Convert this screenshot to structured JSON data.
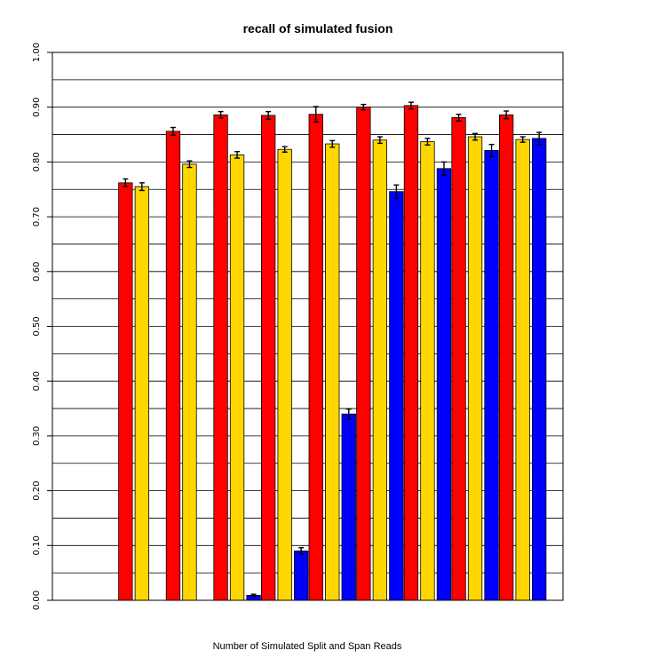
{
  "chart_data": {
    "type": "bar",
    "title": "recall of simulated fusion",
    "xlabel": "Number of Simulated Split and Span Reads",
    "ylabel": "",
    "ylim": [
      0,
      1.0
    ],
    "yticks": [
      "0.00",
      "0.10",
      "0.20",
      "0.30",
      "0.40",
      "0.50",
      "0.60",
      "0.70",
      "0.80",
      "0.90",
      "1.00"
    ],
    "gridlines": [
      0.05,
      0.1,
      0.15,
      0.2,
      0.25,
      0.3,
      0.35,
      0.4,
      0.45,
      0.5,
      0.55,
      0.6,
      0.65,
      0.7,
      0.75,
      0.8,
      0.85,
      0.9,
      0.95
    ],
    "group_count": 11,
    "series": [
      {
        "color": "#ff0000",
        "values": [
          0.0,
          0.762,
          0.856,
          0.886,
          0.885,
          0.887,
          0.9,
          0.903,
          0.881,
          0.886,
          null
        ],
        "errors": [
          0.0,
          0.007,
          0.007,
          0.006,
          0.007,
          0.014,
          0.005,
          0.006,
          0.006,
          0.007,
          null
        ]
      },
      {
        "color": "#ffd700",
        "values": [
          0.0,
          0.755,
          0.796,
          0.813,
          0.823,
          0.833,
          0.84,
          0.837,
          0.846,
          0.841,
          null
        ],
        "errors": [
          0.0,
          0.007,
          0.006,
          0.006,
          0.005,
          0.006,
          0.006,
          0.006,
          0.006,
          0.005,
          null
        ]
      },
      {
        "color": "#0000ff",
        "values": [
          0.0,
          0.0,
          0.0,
          0.009,
          0.09,
          0.34,
          0.746,
          0.788,
          0.821,
          0.843,
          null
        ],
        "errors": [
          0.0,
          0.0,
          0.0,
          0.002,
          0.006,
          0.009,
          0.012,
          0.012,
          0.011,
          0.011,
          null
        ]
      }
    ]
  }
}
